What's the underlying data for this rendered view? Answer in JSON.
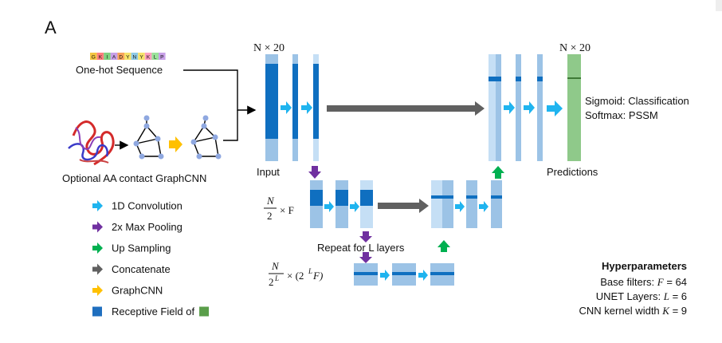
{
  "panel_label": "A",
  "header_n20_left": "N × 20",
  "header_n20_right": "N × 20",
  "one_hot_label": "One-hot Sequence",
  "sequence_letters": [
    "G",
    "K",
    "I",
    "A",
    "D",
    "Y",
    "N",
    "Y",
    "K",
    "L",
    "P"
  ],
  "graph_label": "Optional AA contact GraphCNN",
  "input_label": "Input",
  "predictions_label": "Predictions",
  "sigmoid_label": "Sigmoid: Classification",
  "softmax_label": "Softmax: PSSM",
  "scale_level1": {
    "num": "N",
    "den": "2",
    "suffix": "× F"
  },
  "scale_level2": {
    "num": "N",
    "den": "2",
    "den_sup": "L",
    "suffix": "× (2",
    "suffix_sup": "L",
    "suffix_end": "F)"
  },
  "repeat_label": "Repeat for L layers",
  "legend": [
    {
      "label": "1D Convolution",
      "icon": "arrow-icon",
      "color": "#1fb4ef"
    },
    {
      "label": "2x Max Pooling",
      "icon": "arrow-icon",
      "color": "#7030a0"
    },
    {
      "label": "Up Sampling",
      "icon": "arrow-icon",
      "color": "#00b050"
    },
    {
      "label": "Concatenate",
      "icon": "arrow-icon",
      "color": "#606060"
    },
    {
      "label": "GraphCNN",
      "icon": "arrow-icon",
      "color": "#ffc000"
    },
    {
      "label": "Receptive Field of",
      "icon": "square-icon",
      "color": "#1f6fbf",
      "trailing_swatch": "#5a9e4a"
    }
  ],
  "hyper_title": "Hyperparameters",
  "hyper_rows": [
    {
      "text": "Base filters: ",
      "var": "F",
      "value": " = 64"
    },
    {
      "text": "UNET Layers: ",
      "var": "L",
      "value": " = 6"
    },
    {
      "text": "CNN kernel width ",
      "var": "K",
      "value": " = 9"
    }
  ],
  "colors": {
    "light_blue": "#9cc3e6",
    "pale_blue": "#c5dff5",
    "dark_blue": "#0f6fc0",
    "conv_arrow": "#1fb4ef",
    "pool_arrow": "#7030a0",
    "up_arrow": "#00b050",
    "concat_arrow": "#606060",
    "graph_arrow": "#ffc000",
    "output_green": "#8fc98a",
    "output_line": "#3e7a36"
  }
}
